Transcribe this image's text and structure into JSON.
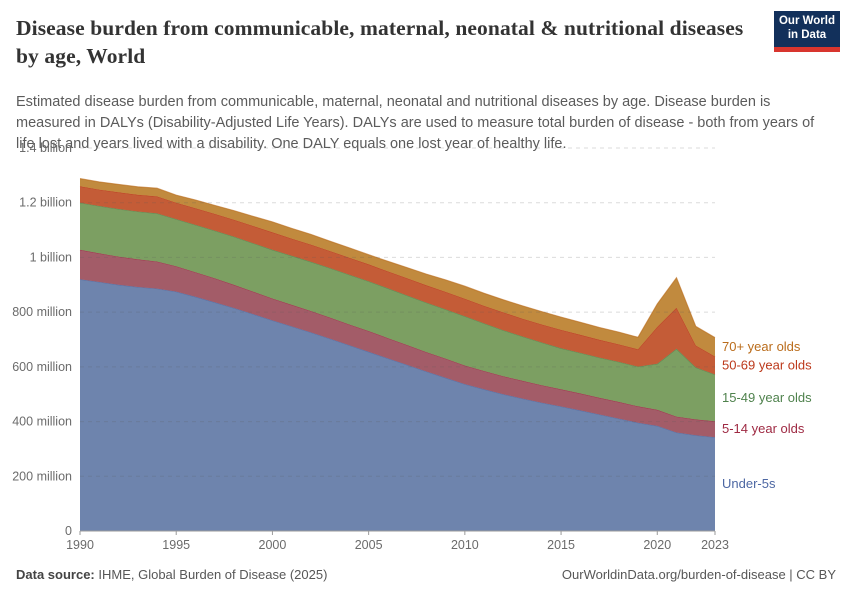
{
  "header": {
    "title": "Disease burden from communicable, maternal, neonatal & nutritional diseases by age, World",
    "subtitle": "Estimated disease burden from communicable, maternal, neonatal and nutritional diseases by age. Disease burden is measured in DALYs (Disability-Adjusted Life Years). DALYs are used to measure total burden of disease - both from years of life lost and years lived with a disability. One DALY equals one lost year of healthy life.",
    "logo": {
      "line1": "Our World",
      "line2": "in Data",
      "bg_color": "#12305b",
      "accent_color": "#d8352e"
    }
  },
  "chart_data": {
    "type": "area",
    "stacked": true,
    "title": "Disease burden from communicable, maternal, neonatal & nutritional diseases by age, World",
    "ylabel": "DALYs",
    "values_unit": "million DALYs",
    "ylim_millions": [
      0,
      1400
    ],
    "grid": "horizontal-dashed",
    "legend_position": "right-of-plot",
    "x": [
      1990,
      1991,
      1992,
      1993,
      1994,
      1995,
      1996,
      1997,
      1998,
      1999,
      2000,
      2001,
      2002,
      2003,
      2004,
      2005,
      2006,
      2007,
      2008,
      2009,
      2010,
      2011,
      2012,
      2013,
      2014,
      2015,
      2016,
      2017,
      2018,
      2019,
      2020,
      2021,
      2022,
      2023
    ],
    "xticks": [
      1990,
      1995,
      2000,
      2005,
      2010,
      2015,
      2020,
      2023
    ],
    "yticks": [
      {
        "value": 0,
        "label": "0"
      },
      {
        "value": 200,
        "label": "200 million"
      },
      {
        "value": 400,
        "label": "400 million"
      },
      {
        "value": 600,
        "label": "600 million"
      },
      {
        "value": 800,
        "label": "800 million"
      },
      {
        "value": 1000,
        "label": "1 billion"
      },
      {
        "value": 1200,
        "label": "1.2 billion"
      },
      {
        "value": 1400,
        "label": "1.4 billion"
      }
    ],
    "series": [
      {
        "name": "Under-5s",
        "fill": "#6e84ad",
        "line": "#4d67a3",
        "values": [
          920,
          910,
          900,
          892,
          886,
          875,
          856,
          836,
          815,
          793,
          770,
          748,
          726,
          703,
          679,
          655,
          631,
          607,
          583,
          560,
          537,
          518,
          500,
          484,
          469,
          455,
          441,
          426,
          411,
          396,
          384,
          360,
          350,
          343
        ]
      },
      {
        "name": "5-14 year olds",
        "fill": "#a35c68",
        "line": "#9e2942",
        "values": [
          108,
          105,
          103,
          101,
          99,
          93,
          90,
          88,
          85,
          82,
          80,
          79,
          78,
          77,
          76,
          76,
          74,
          73,
          71,
          70,
          68,
          67,
          66,
          65,
          64,
          63,
          62,
          61,
          61,
          60,
          59,
          58,
          58,
          58
        ]
      },
      {
        "name": "15-49 year olds",
        "fill": "#7c9f62",
        "line": "#4f824d",
        "values": [
          172,
          173,
          174,
          175,
          176,
          172,
          173,
          174,
          176,
          177,
          178,
          179,
          180,
          181,
          182,
          182,
          182,
          181,
          181,
          180,
          180,
          174,
          168,
          162,
          156,
          150,
          148,
          147,
          146,
          145,
          168,
          248,
          190,
          171
        ]
      },
      {
        "name": "50-69 year olds",
        "fill": "#c45c37",
        "line": "#bc391b",
        "values": [
          60,
          60,
          61,
          61,
          62,
          60,
          61,
          61,
          62,
          63,
          64,
          63,
          63,
          62,
          62,
          62,
          62,
          63,
          63,
          64,
          64,
          64,
          65,
          65,
          66,
          67,
          66,
          65,
          64,
          63,
          135,
          150,
          80,
          66
        ]
      },
      {
        "name": "70+ year olds",
        "fill": "#c18a3e",
        "line": "#ba6c1b",
        "values": [
          28,
          28,
          29,
          29,
          30,
          28,
          30,
          31,
          33,
          35,
          38,
          37,
          37,
          36,
          36,
          35,
          37,
          39,
          41,
          44,
          46,
          46,
          46,
          47,
          47,
          47,
          46,
          45,
          45,
          44,
          84,
          110,
          70,
          69
        ]
      }
    ]
  },
  "footer": {
    "source_label": "Data source:",
    "source_text": " IHME, Global Burden of Disease (2025)",
    "link_text": "OurWorldinData.org/burden-of-disease | CC BY"
  }
}
